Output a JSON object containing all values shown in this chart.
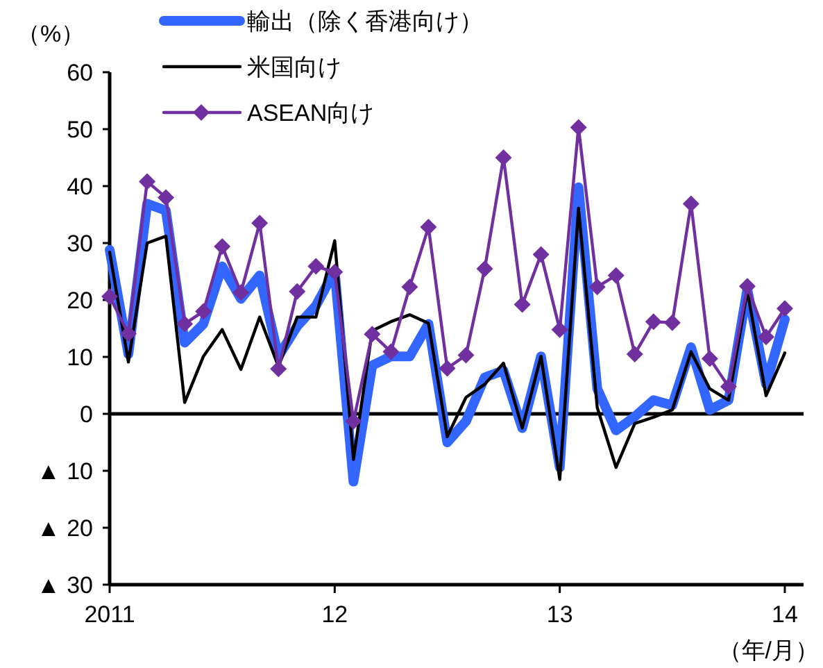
{
  "chart_data": {
    "type": "line",
    "ylabel": "（%）",
    "xlabel": "（年/月）",
    "legend": "top",
    "marker": "none",
    "line_style": "solid",
    "x": [
      "2011-01",
      "2011-02",
      "2011-03",
      "2011-04",
      "2011-05",
      "2011-06",
      "2011-07",
      "2011-08",
      "2011-09",
      "2011-10",
      "2011-11",
      "2011-12",
      "2012-01",
      "2012-02",
      "2012-03",
      "2012-04",
      "2012-05",
      "2012-06",
      "2012-07",
      "2012-08",
      "2012-09",
      "2012-10",
      "2012-11",
      "2012-12",
      "2013-01",
      "2013-02",
      "2013-03",
      "2013-04",
      "2013-05",
      "2013-06",
      "2013-07",
      "2013-08",
      "2013-09",
      "2013-10",
      "2013-11",
      "2013-12",
      "2014-01"
    ],
    "xlim": [
      "2011-01",
      "2014-02"
    ],
    "xticks": [
      {
        "value": "2011-01",
        "label": "2011"
      },
      {
        "value": "2012-01",
        "label": "12"
      },
      {
        "value": "2013-01",
        "label": "13"
      },
      {
        "value": "2014-01",
        "label": "14"
      }
    ],
    "ylim": [
      -30,
      60
    ],
    "yticks": [
      {
        "value": -30,
        "label": "▲ 30"
      },
      {
        "value": -20,
        "label": "▲ 20"
      },
      {
        "value": -10,
        "label": "▲ 10"
      },
      0,
      10,
      20,
      30,
      40,
      50,
      60
    ],
    "ref_lines": [
      {
        "axis": "y",
        "value": 0,
        "color": "#000000"
      }
    ],
    "series": [
      {
        "name": "輸出（除く香港向け）",
        "color": "#3366ff",
        "values": [
          28.8,
          10.5,
          36.9,
          35.7,
          12.5,
          15.8,
          25.9,
          20.2,
          24.3,
          10.1,
          15.4,
          19.0,
          25.1,
          -11.9,
          8.5,
          10.1,
          10.1,
          15.8,
          -5.0,
          -1.3,
          6.4,
          7.6,
          -2.5,
          10.1,
          -9.4,
          39.8,
          4.4,
          -2.9,
          -0.5,
          2.4,
          1.5,
          11.7,
          0.7,
          2.4,
          21.9,
          5.2,
          16.6
        ]
      },
      {
        "name": "米国向け",
        "color": "#000000",
        "values": [
          28.4,
          9.1,
          30.0,
          31.2,
          2.0,
          10.1,
          14.8,
          7.8,
          17.0,
          8.3,
          17.0,
          17.0,
          30.4,
          -8.0,
          14.6,
          16.2,
          17.4,
          15.9,
          -4.0,
          2.9,
          5.2,
          8.9,
          -2.5,
          10.1,
          -11.5,
          36.1,
          1.1,
          -9.4,
          -1.7,
          -0.6,
          0.7,
          10.9,
          4.4,
          2.4,
          21.6,
          3.2,
          10.7
        ]
      },
      {
        "name": "ASEAN向け",
        "color": "#7030a0",
        "marker": "diamond",
        "values": [
          20.6,
          14.1,
          40.8,
          38.0,
          15.8,
          18.0,
          29.4,
          21.3,
          33.5,
          7.9,
          21.5,
          25.9,
          24.9,
          -1.3,
          14.0,
          10.9,
          22.3,
          32.8,
          8.0,
          10.3,
          25.5,
          45.0,
          19.2,
          28.0,
          14.8,
          50.3,
          22.3,
          24.3,
          10.5,
          16.2,
          16.0,
          36.9,
          9.7,
          4.8,
          22.4,
          13.5,
          18.5
        ]
      }
    ]
  }
}
